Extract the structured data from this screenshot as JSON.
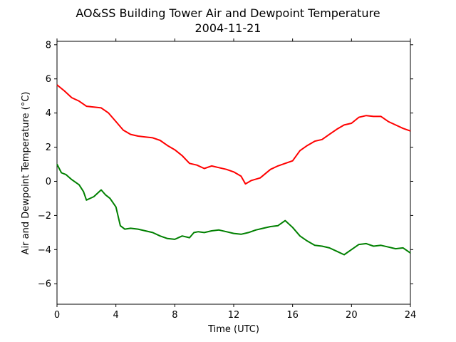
{
  "chart_data": {
    "type": "line",
    "title": "AO&SS Building Tower Air and Dewpoint Temperature",
    "subtitle": "2004-11-21",
    "xlabel": "Time (UTC)",
    "ylabel": "Air and Dewpoint Temperature (°C)",
    "xlim": [
      0,
      24
    ],
    "ylim": [
      -7.2,
      8.2
    ],
    "xticks": [
      "0",
      "4",
      "8",
      "12",
      "16",
      "20",
      "24"
    ],
    "yticks": [
      "−6",
      "−4",
      "−2",
      "0",
      "2",
      "4",
      "6",
      "8"
    ],
    "grid": false,
    "series": [
      {
        "color": "#ff0000",
        "x": [
          0,
          0.5,
          1,
          1.5,
          2,
          2.5,
          3,
          3.5,
          4,
          4.5,
          5,
          5.5,
          6,
          6.5,
          7,
          7.5,
          8,
          8.5,
          9,
          9.5,
          10,
          10.5,
          11,
          11.5,
          12,
          12.5,
          12.8,
          13.2,
          13.8,
          14.5,
          15,
          15.5,
          16,
          16.5,
          17,
          17.5,
          18,
          18.5,
          19,
          19.5,
          20,
          20.5,
          21,
          21.5,
          22,
          22.5,
          23,
          23.5,
          24
        ],
        "y": [
          5.65,
          5.3,
          4.9,
          4.7,
          4.4,
          4.35,
          4.3,
          4.0,
          3.5,
          3.0,
          2.75,
          2.65,
          2.6,
          2.55,
          2.4,
          2.1,
          1.85,
          1.5,
          1.05,
          0.95,
          0.75,
          0.9,
          0.8,
          0.7,
          0.55,
          0.3,
          -0.15,
          0.05,
          0.2,
          0.7,
          0.9,
          1.05,
          1.2,
          1.8,
          2.1,
          2.35,
          2.45,
          2.75,
          3.05,
          3.3,
          3.4,
          3.75,
          3.85,
          3.8,
          3.8,
          3.5,
          3.3,
          3.1,
          2.95
        ]
      },
      {
        "color": "#008000",
        "x": [
          0,
          0.3,
          0.6,
          1,
          1.5,
          1.8,
          2,
          2.5,
          3,
          3.3,
          3.6,
          4,
          4.3,
          4.6,
          5,
          5.5,
          6,
          6.5,
          7,
          7.5,
          8,
          8.5,
          9,
          9.3,
          9.6,
          10,
          10.5,
          11,
          11.5,
          12,
          12.5,
          13,
          13.5,
          14,
          14.5,
          15,
          15.5,
          16,
          16.5,
          17,
          17.5,
          18,
          18.5,
          19,
          19.5,
          20,
          20.5,
          21,
          21.5,
          22,
          22.5,
          23,
          23.5,
          24
        ],
        "y": [
          1.0,
          0.5,
          0.4,
          0.1,
          -0.2,
          -0.6,
          -1.1,
          -0.9,
          -0.5,
          -0.8,
          -1.0,
          -1.5,
          -2.6,
          -2.8,
          -2.75,
          -2.8,
          -2.9,
          -3.0,
          -3.2,
          -3.35,
          -3.4,
          -3.2,
          -3.3,
          -3.0,
          -2.95,
          -3.0,
          -2.9,
          -2.85,
          -2.95,
          -3.05,
          -3.1,
          -3.0,
          -2.85,
          -2.75,
          -2.65,
          -2.6,
          -2.3,
          -2.7,
          -3.2,
          -3.5,
          -3.75,
          -3.8,
          -3.9,
          -4.1,
          -4.3,
          -4.0,
          -3.7,
          -3.65,
          -3.8,
          -3.75,
          -3.85,
          -3.95,
          -3.9,
          -4.2
        ]
      }
    ]
  }
}
